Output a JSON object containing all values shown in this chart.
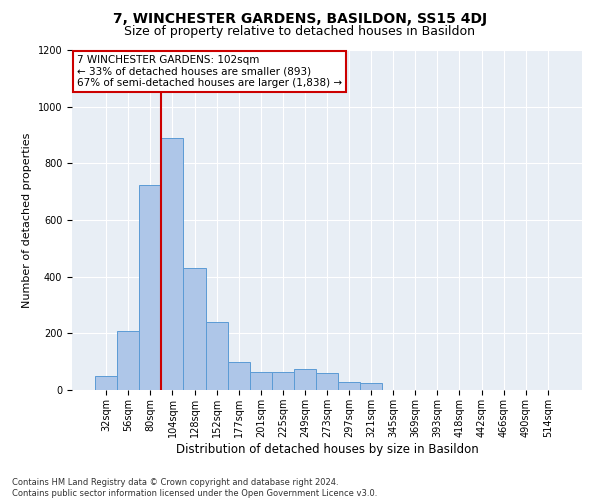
{
  "title": "7, WINCHESTER GARDENS, BASILDON, SS15 4DJ",
  "subtitle": "Size of property relative to detached houses in Basildon",
  "xlabel": "Distribution of detached houses by size in Basildon",
  "ylabel": "Number of detached properties",
  "footnote": "Contains HM Land Registry data © Crown copyright and database right 2024.\nContains public sector information licensed under the Open Government Licence v3.0.",
  "categories": [
    "32sqm",
    "56sqm",
    "80sqm",
    "104sqm",
    "128sqm",
    "152sqm",
    "177sqm",
    "201sqm",
    "225sqm",
    "249sqm",
    "273sqm",
    "297sqm",
    "321sqm",
    "345sqm",
    "369sqm",
    "393sqm",
    "418sqm",
    "442sqm",
    "466sqm",
    "490sqm",
    "514sqm"
  ],
  "values": [
    50,
    210,
    725,
    890,
    430,
    240,
    100,
    65,
    65,
    75,
    60,
    30,
    25,
    0,
    0,
    0,
    0,
    0,
    0,
    0,
    0
  ],
  "bar_color": "#aec6e8",
  "bar_edge_color": "#5b9bd5",
  "vline_color": "#cc0000",
  "vline_pos": 2.5,
  "annotation_text": "7 WINCHESTER GARDENS: 102sqm\n← 33% of detached houses are smaller (893)\n67% of semi-detached houses are larger (1,838) →",
  "annotation_box_color": "#ffffff",
  "annotation_box_edge": "#cc0000",
  "ylim": [
    0,
    1200
  ],
  "yticks": [
    0,
    200,
    400,
    600,
    800,
    1000,
    1200
  ],
  "bg_color": "#e8eef5",
  "fig_bg_color": "#ffffff",
  "title_fontsize": 10,
  "subtitle_fontsize": 9,
  "ylabel_fontsize": 8,
  "xlabel_fontsize": 8.5,
  "tick_fontsize": 7,
  "annot_fontsize": 7.5,
  "footnote_fontsize": 6
}
